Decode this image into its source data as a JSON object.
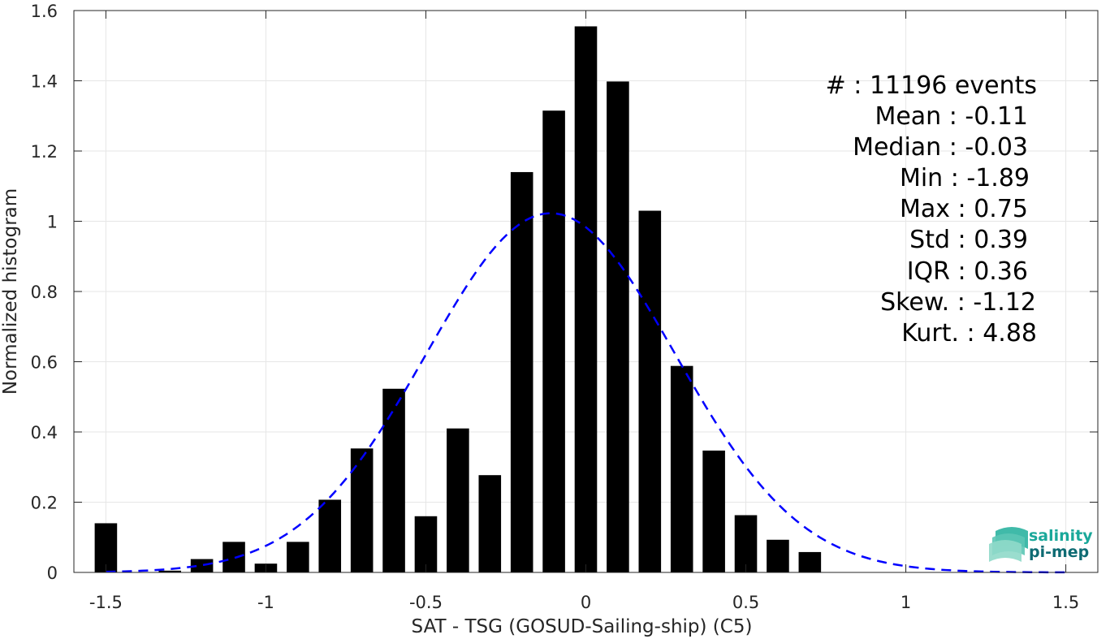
{
  "chart_data": {
    "type": "bar",
    "xlabel": "SAT - TSG (GOSUD-Sailing-ship) (C5)",
    "ylabel": "Normalized histogram",
    "xlim": [
      -1.6,
      1.6
    ],
    "ylim": [
      0,
      1.6
    ],
    "xticks": [
      -1.5,
      -1,
      -0.5,
      0,
      0.5,
      1,
      1.5
    ],
    "xtick_labels": [
      "-1.5",
      "-1",
      "-0.5",
      "0",
      "0.5",
      "1",
      "1.5"
    ],
    "yticks": [
      0,
      0.2,
      0.4,
      0.6,
      0.8,
      1,
      1.2,
      1.4,
      1.6
    ],
    "ytick_labels": [
      "0",
      "0.2",
      "0.4",
      "0.6",
      "0.8",
      "1",
      "1.2",
      "1.4",
      "1.6"
    ],
    "grid": true,
    "bar_width": 0.07,
    "bar_color": "#000000",
    "bars": [
      {
        "x": -1.5,
        "y": 0.14
      },
      {
        "x": -1.4,
        "y": 0.0
      },
      {
        "x": -1.3,
        "y": 0.005
      },
      {
        "x": -1.2,
        "y": 0.038
      },
      {
        "x": -1.1,
        "y": 0.087
      },
      {
        "x": -1.0,
        "y": 0.025
      },
      {
        "x": -0.9,
        "y": 0.087
      },
      {
        "x": -0.8,
        "y": 0.207
      },
      {
        "x": -0.7,
        "y": 0.353
      },
      {
        "x": -0.6,
        "y": 0.523
      },
      {
        "x": -0.5,
        "y": 0.16
      },
      {
        "x": -0.4,
        "y": 0.41
      },
      {
        "x": -0.3,
        "y": 0.277
      },
      {
        "x": -0.2,
        "y": 1.14
      },
      {
        "x": -0.1,
        "y": 1.315
      },
      {
        "x": 0.0,
        "y": 1.555
      },
      {
        "x": 0.1,
        "y": 1.398
      },
      {
        "x": 0.2,
        "y": 1.03
      },
      {
        "x": 0.3,
        "y": 0.588
      },
      {
        "x": 0.4,
        "y": 0.347
      },
      {
        "x": 0.5,
        "y": 0.163
      },
      {
        "x": 0.6,
        "y": 0.093
      },
      {
        "x": 0.7,
        "y": 0.058
      }
    ],
    "fit_curve": {
      "type": "gaussian",
      "mean": -0.11,
      "std": 0.39,
      "x_range": [
        -1.5,
        1.5
      ],
      "color": "#0000ff",
      "style": "dashed"
    },
    "stats": [
      {
        "label": "#  : 11196 events"
      },
      {
        "label": "Mean : -0.11"
      },
      {
        "label": "Median : -0.03"
      },
      {
        "label": "Min : -1.89"
      },
      {
        "label": "Max : 0.75"
      },
      {
        "label": "Std : 0.39"
      },
      {
        "label": "IQR : 0.36"
      },
      {
        "label": "Skew. : -1.12"
      },
      {
        "label": "Kurt. : 4.88"
      }
    ]
  },
  "logo": {
    "line1": "salinity",
    "line2": "pi-mep",
    "color1": "#1aa89a",
    "color2": "#0e6b73"
  }
}
